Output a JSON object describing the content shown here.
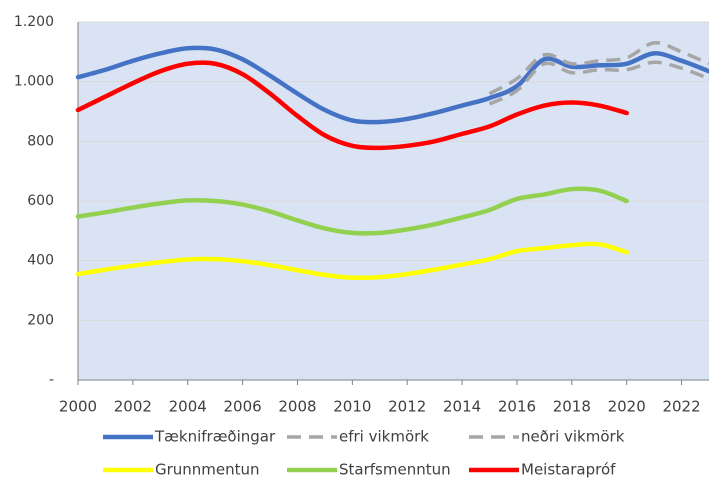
{
  "chart_data": {
    "type": "line",
    "x": [
      2000,
      2001,
      2002,
      2003,
      2004,
      2005,
      2006,
      2007,
      2008,
      2009,
      2010,
      2011,
      2012,
      2013,
      2014,
      2015,
      2016,
      2017,
      2018,
      2019,
      2020,
      2021,
      2022,
      2023
    ],
    "series": [
      {
        "name": "Tæknifræðingar",
        "color": "#4472c4",
        "dashed": false,
        "values": [
          1015,
          1040,
          1070,
          1095,
          1112,
          1108,
          1075,
          1020,
          960,
          905,
          870,
          865,
          875,
          895,
          920,
          945,
          985,
          1075,
          1050,
          1055,
          1060,
          1095,
          1070,
          1035
        ]
      },
      {
        "name": "efri vikmörk",
        "color": "#a6a6a6",
        "dashed": true,
        "values": [
          null,
          null,
          null,
          null,
          null,
          null,
          null,
          null,
          null,
          null,
          null,
          null,
          null,
          null,
          null,
          960,
          1010,
          1090,
          1060,
          1070,
          1080,
          1130,
          1100,
          1060
        ]
      },
      {
        "name": "neðri vikmörk",
        "color": "#a6a6a6",
        "dashed": true,
        "values": [
          null,
          null,
          null,
          null,
          null,
          null,
          null,
          null,
          null,
          null,
          null,
          null,
          null,
          null,
          null,
          925,
          970,
          1060,
          1030,
          1040,
          1040,
          1065,
          1045,
          1010
        ]
      },
      {
        "name": "Grunnmentun",
        "color": "#ffff00",
        "dashed": false,
        "values": [
          355,
          370,
          383,
          395,
          404,
          405,
          398,
          385,
          368,
          352,
          343,
          345,
          355,
          370,
          387,
          405,
          432,
          442,
          452,
          455,
          428,
          null,
          null,
          null
        ]
      },
      {
        "name": "Starfsmenntun",
        "color": "#92d050",
        "dashed": false,
        "values": [
          548,
          562,
          578,
          592,
          602,
          600,
          588,
          565,
          535,
          508,
          493,
          493,
          505,
          522,
          545,
          570,
          607,
          622,
          640,
          635,
          600,
          null,
          null,
          null
        ]
      },
      {
        "name": "Meistarapróf",
        "color": "#ff0000",
        "dashed": false,
        "values": [
          905,
          950,
          995,
          1035,
          1060,
          1060,
          1025,
          960,
          885,
          820,
          785,
          778,
          785,
          800,
          825,
          850,
          890,
          920,
          930,
          920,
          895,
          null,
          null,
          null
        ]
      }
    ],
    "xlim": [
      2000,
      2023
    ],
    "xticks": [
      2000,
      2002,
      2004,
      2006,
      2008,
      2010,
      2012,
      2014,
      2016,
      2018,
      2020,
      2022
    ],
    "ylim": [
      0,
      1200
    ],
    "yticks": [
      {
        "value": 0,
        "label": "-"
      },
      200,
      400,
      600,
      800,
      {
        "value": 1000,
        "label": "1.000"
      },
      {
        "value": 1200,
        "label": "1.200"
      }
    ],
    "grid": true,
    "legend": "bottom",
    "background": "#dae3f3"
  }
}
